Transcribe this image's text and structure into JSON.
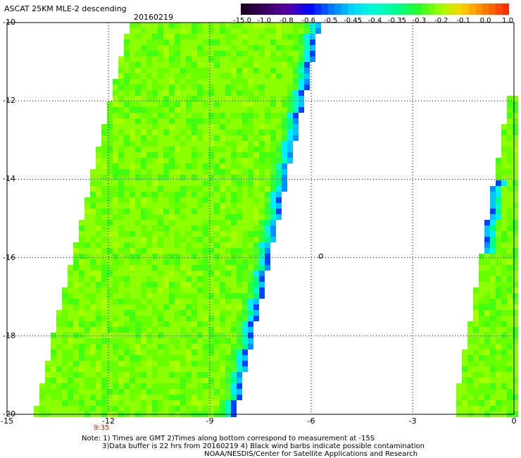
{
  "header": {
    "title": "ASCAT 25KM MLE-2 descending",
    "date": "20160219"
  },
  "colorbar": {
    "labels": [
      "-15.0",
      "-1.0",
      "-0.8",
      "-0.6",
      "-0.5",
      "-0.45",
      "-0.4",
      "-0.35",
      "-0.3",
      "-0.2",
      "-0.1",
      "0.0",
      "1.0"
    ],
    "colors": [
      "#1a0024",
      "#3a0060",
      "#5a00a8",
      "#0000ff",
      "#0078ff",
      "#00d8ff",
      "#00ffd0",
      "#00ff90",
      "#28ff28",
      "#a0ff00",
      "#ffd000",
      "#ff8000",
      "#ff3000"
    ]
  },
  "axes": {
    "y_labels": [
      "-10",
      "-12",
      "-14",
      "-16",
      "-18",
      "-20"
    ],
    "x_labels": [
      "-15",
      "-12",
      "-9",
      "-6",
      "-3",
      "0"
    ]
  },
  "time_label": "9:35",
  "notes": [
    "Note: 1) Times are GMT 2)Times along bottom correspond to measurement at -15S",
    "3)Data buffer is 22 hrs from 20160219 4) Black wind barbs indicate possible contamination",
    "NOAA/NESDIS/Center for Satellite Applications and Research"
  ],
  "island_label": "o"
}
